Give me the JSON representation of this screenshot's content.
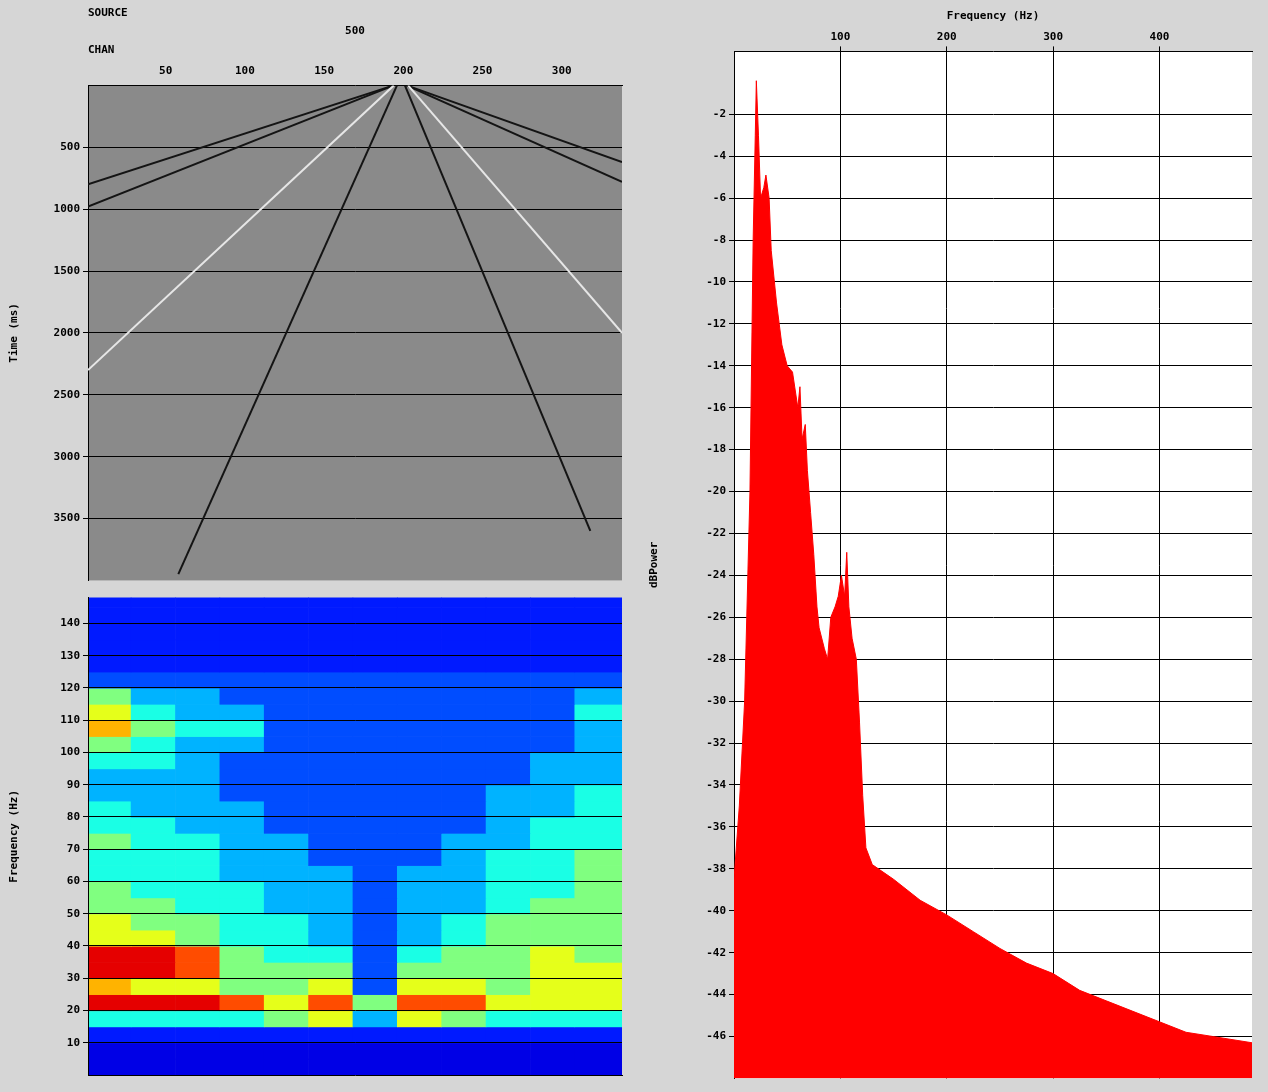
{
  "chart_data": [
    {
      "type": "line",
      "header": {
        "label": "SOURCE",
        "value": 500
      },
      "x_label": "CHAN",
      "y_label": "Time (ms)",
      "xlim": [
        1,
        338
      ],
      "xticks": [
        50,
        100,
        150,
        200,
        250,
        300
      ],
      "ylim": [
        4000,
        0
      ],
      "yticks": [
        500,
        1000,
        1500,
        2000,
        2500,
        3000,
        3500
      ],
      "grid": "y",
      "series": [
        {
          "x": [
            196,
            58
          ],
          "values": [
            0,
            3950
          ],
          "color": "#141414"
        },
        {
          "x": [
            201,
            318
          ],
          "values": [
            0,
            3600
          ],
          "color": "#141414"
        },
        {
          "x": [
            194,
            1
          ],
          "values": [
            0,
            2300
          ],
          "color": "#e6e6e6"
        },
        {
          "x": [
            203,
            338
          ],
          "values": [
            0,
            2000
          ],
          "color": "#e6e6e6"
        },
        {
          "x": [
            194,
            1
          ],
          "values": [
            0,
            980
          ],
          "color": "#141414"
        },
        {
          "x": [
            194,
            1
          ],
          "values": [
            0,
            800
          ],
          "color": "#141414"
        },
        {
          "x": [
            202,
            338
          ],
          "values": [
            0,
            780
          ],
          "color": "#141414"
        },
        {
          "x": [
            202,
            338
          ],
          "values": [
            0,
            620
          ],
          "color": "#141414"
        }
      ]
    },
    {
      "type": "heatmap",
      "y_label": "Frequency (Hz)",
      "xlim": [
        1,
        338
      ],
      "ylim": [
        0,
        148
      ],
      "yticks": [
        10,
        20,
        30,
        40,
        50,
        60,
        70,
        80,
        90,
        100,
        110,
        120,
        130,
        140
      ],
      "grid": "y",
      "tick_labels": "y",
      "cells": {
        "x_edges": [
          0,
          28,
          56,
          84,
          112,
          140,
          168,
          196,
          224,
          252,
          280,
          308,
          338
        ],
        "y_edges": [
          0,
          5,
          10,
          15,
          20,
          25,
          30,
          35,
          40,
          45,
          50,
          55,
          60,
          65,
          70,
          75,
          80,
          85,
          90,
          95,
          100,
          105,
          110,
          115,
          120,
          125,
          130,
          135,
          140,
          145,
          150
        ],
        "zlim": [
          0,
          10
        ],
        "values": [
          [
            1,
            1,
            1,
            1,
            1,
            1,
            1,
            1,
            1,
            1,
            1,
            1
          ],
          [
            1,
            1,
            1,
            1,
            1,
            1,
            1,
            1,
            1,
            1,
            1,
            1
          ],
          [
            1.5,
            1.5,
            1.5,
            1.5,
            1.5,
            1.5,
            1.5,
            1.5,
            1.5,
            1.5,
            1.5,
            1.5
          ],
          [
            4,
            4,
            4,
            4,
            5,
            6,
            3,
            6,
            5,
            4,
            4,
            4
          ],
          [
            9,
            9,
            9,
            8,
            6,
            8,
            5,
            8,
            8,
            6,
            6,
            6
          ],
          [
            7,
            6,
            6,
            5,
            5,
            6,
            2,
            6,
            6,
            5,
            6,
            6
          ],
          [
            9,
            9,
            8,
            5,
            5,
            5,
            2,
            5,
            5,
            5,
            6,
            6
          ],
          [
            9,
            9,
            8,
            5,
            4,
            4,
            2,
            4,
            5,
            5,
            6,
            5
          ],
          [
            6,
            6,
            5,
            4,
            4,
            3,
            2,
            3,
            4,
            5,
            5,
            5
          ],
          [
            6,
            5,
            5,
            4,
            4,
            3,
            2,
            3,
            4,
            5,
            5,
            5
          ],
          [
            5,
            5,
            4,
            4,
            3,
            3,
            2,
            3,
            3,
            4,
            5,
            5
          ],
          [
            5,
            4,
            4,
            4,
            3,
            3,
            2,
            3,
            3,
            4,
            4,
            5
          ],
          [
            4,
            4,
            4,
            3,
            3,
            3,
            2,
            3,
            3,
            4,
            4,
            5
          ],
          [
            4,
            4,
            4,
            3,
            3,
            2,
            2,
            2,
            3,
            4,
            4,
            5
          ],
          [
            5,
            4,
            4,
            3,
            3,
            2,
            2,
            2,
            3,
            3,
            4,
            4
          ],
          [
            4,
            4,
            3,
            3,
            2,
            2,
            2,
            2,
            2,
            3,
            4,
            4
          ],
          [
            4,
            3,
            3,
            3,
            2,
            2,
            2,
            2,
            2,
            3,
            3,
            4
          ],
          [
            3,
            3,
            3,
            2,
            2,
            2,
            2,
            2,
            2,
            3,
            3,
            4
          ],
          [
            3,
            3,
            3,
            2,
            2,
            2,
            2,
            2,
            2,
            2,
            3,
            3
          ],
          [
            4,
            4,
            3,
            2,
            2,
            2,
            2,
            2,
            2,
            2,
            3,
            3
          ],
          [
            5,
            4,
            3,
            3,
            2,
            2,
            2,
            2,
            2,
            2,
            2,
            3
          ],
          [
            7,
            5,
            4,
            4,
            2,
            2,
            2,
            2,
            2,
            2,
            2,
            3
          ],
          [
            6,
            4,
            3,
            3,
            2,
            2,
            2,
            2,
            2,
            2,
            2,
            4
          ],
          [
            5,
            3,
            3,
            2,
            2,
            2,
            2,
            2,
            2,
            2,
            2,
            3
          ],
          [
            2,
            2,
            2,
            2,
            2,
            2,
            2,
            2,
            2,
            2,
            2,
            2
          ],
          [
            1.5,
            1.5,
            1.5,
            1.5,
            1.5,
            1.5,
            1.5,
            1.5,
            1.5,
            1.5,
            1.5,
            1.5
          ],
          [
            1.5,
            1.5,
            1.5,
            1.5,
            1.5,
            1.5,
            1.5,
            1.5,
            1.5,
            1.5,
            1.5,
            1.5
          ],
          [
            1.5,
            1.5,
            1.5,
            1.5,
            1.5,
            1.5,
            1.5,
            1.5,
            1.5,
            1.5,
            1.5,
            1.5
          ],
          [
            1.5,
            1.5,
            1.5,
            1.5,
            1.5,
            1.5,
            1.5,
            1.5,
            1.5,
            1.5,
            1.5,
            1.5
          ],
          [
            1.5,
            1.5,
            1.5,
            1.5,
            1.5,
            1.5,
            1.5,
            1.5,
            1.5,
            1.5,
            1.5,
            1.5
          ]
        ]
      }
    },
    {
      "type": "area",
      "x_label": "Frequency (Hz)",
      "y_label": "dBPower",
      "xlim": [
        0,
        487
      ],
      "xticks": [
        100,
        200,
        300,
        400
      ],
      "ylim": [
        -48,
        1
      ],
      "yticks": [
        -2,
        -4,
        -6,
        -8,
        -10,
        -12,
        -14,
        -16,
        -18,
        -20,
        -22,
        -24,
        -26,
        -28,
        -30,
        -32,
        -34,
        -36,
        -38,
        -40,
        -42,
        -44,
        -46
      ],
      "grid": true,
      "color": "#ff0000",
      "x": [
        0,
        5,
        10,
        15,
        18,
        20,
        21,
        23,
        25,
        28,
        30,
        33,
        35,
        40,
        45,
        50,
        55,
        60,
        62,
        64,
        67,
        69,
        72,
        75,
        78,
        80,
        85,
        88,
        91,
        95,
        98,
        101,
        104,
        106,
        108,
        111,
        115,
        118,
        121,
        124,
        130,
        150,
        175,
        200,
        225,
        250,
        275,
        300,
        325,
        350,
        375,
        400,
        425,
        450,
        487
      ],
      "values": [
        -38.5,
        -35,
        -30,
        -20,
        -8,
        -3,
        -0.4,
        -3,
        -6,
        -5.5,
        -4.9,
        -6,
        -8.5,
        -11,
        -13,
        -14,
        -14.3,
        -16,
        -15,
        -17.5,
        -16.8,
        -19,
        -21,
        -23,
        -25.5,
        -26.5,
        -27.5,
        -28,
        -26,
        -25.5,
        -25,
        -24,
        -25,
        -22.9,
        -25.5,
        -27,
        -28,
        -31,
        -34.5,
        -37,
        -37.8,
        -38.5,
        -39.5,
        -40.2,
        -41,
        -41.8,
        -42.5,
        -43,
        -43.8,
        -44.3,
        -44.8,
        -45.3,
        -45.8,
        -46,
        -46.3
      ]
    }
  ]
}
